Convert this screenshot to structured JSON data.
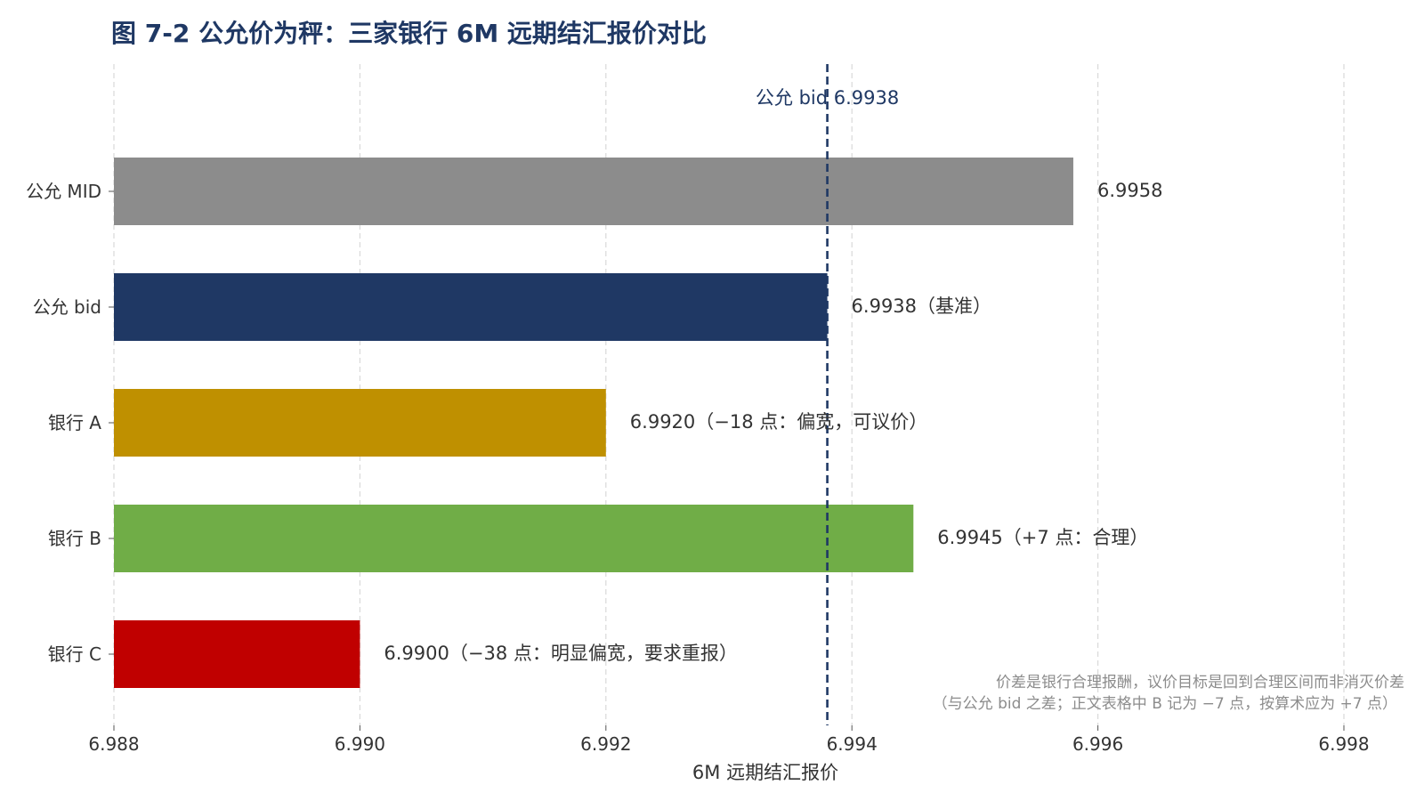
{
  "chart_data": {
    "type": "bar",
    "orientation": "horizontal",
    "title": "图 7-2 公允价为秤：三家银行 6M 远期结汇报价对比",
    "xlabel": "6M 远期结汇报价",
    "ylabel": "",
    "xlim": [
      6.988,
      6.998
    ],
    "x_ticks": [
      "6.988",
      "6.990",
      "6.992",
      "6.994",
      "6.996",
      "6.998"
    ],
    "grid": "vertical dashed",
    "categories": [
      "公允 MID",
      "公允 bid",
      "银行 A",
      "银行 B",
      "银行 C"
    ],
    "values": [
      6.9958,
      6.9938,
      6.992,
      6.9945,
      6.99
    ],
    "colors": [
      "#8c8c8c",
      "#1f3864",
      "#bf9000",
      "#70ad47",
      "#c00000"
    ],
    "data_labels": [
      "6.9958",
      "6.9938（基准）",
      "6.9920（−18 点：偏宽，可议价）",
      "6.9945（+7 点：合理）",
      "6.9900（−38 点：明显偏宽，要求重报）"
    ],
    "reference_line": {
      "value": 6.9938,
      "label": "公允 bid 6.9938",
      "color": "#1f3864",
      "style": "dashed"
    },
    "annotations": [
      "价差是银行合理报酬，议价目标是回到合理区间而非消灭价差",
      "（与公允 bid 之差；正文表格中 B 记为 −7 点，按算术应为 +7 点）"
    ]
  }
}
